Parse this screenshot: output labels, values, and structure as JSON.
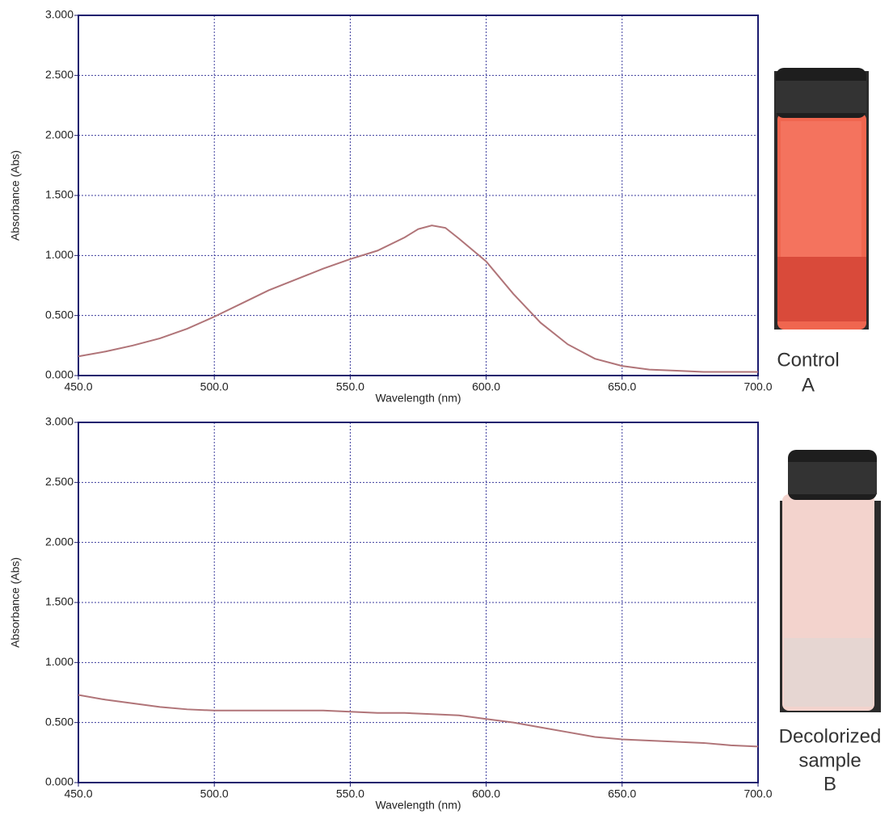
{
  "chart_data": [
    {
      "type": "line",
      "x_label": "Wavelength (nm)",
      "y_label": "Absorbance (Abs)",
      "caption": [
        "Control",
        "A"
      ],
      "x": [
        450,
        460,
        470,
        480,
        490,
        500,
        510,
        520,
        530,
        540,
        550,
        560,
        570,
        575,
        580,
        585,
        590,
        600,
        610,
        620,
        630,
        640,
        650,
        660,
        670,
        680,
        690,
        700
      ],
      "series": [
        {
          "color": "#b07478",
          "values": [
            0.16,
            0.2,
            0.25,
            0.31,
            0.39,
            0.49,
            0.6,
            0.71,
            0.8,
            0.89,
            0.97,
            1.04,
            1.15,
            1.22,
            1.25,
            1.23,
            1.14,
            0.95,
            0.68,
            0.44,
            0.26,
            0.14,
            0.08,
            0.05,
            0.04,
            0.03,
            0.03,
            0.03
          ]
        }
      ],
      "xlim": [
        450,
        700
      ],
      "ylim": [
        0,
        3
      ],
      "xticks": [
        {
          "value": 450,
          "label": "450.0"
        },
        {
          "value": 500,
          "label": "500.0"
        },
        {
          "value": 550,
          "label": "550.0"
        },
        {
          "value": 600,
          "label": "600.0"
        },
        {
          "value": 650,
          "label": "650.0"
        },
        {
          "value": 700,
          "label": "700.0"
        }
      ],
      "yticks": [
        {
          "value": 0,
          "label": "0.000"
        },
        {
          "value": 0.5,
          "label": "0.500"
        },
        {
          "value": 1,
          "label": "1.000"
        },
        {
          "value": 1.5,
          "label": "1.500"
        },
        {
          "value": 2,
          "label": "2.000"
        },
        {
          "value": 2.5,
          "label": "2.500"
        },
        {
          "value": 3,
          "label": "3.000"
        }
      ],
      "grid": true
    },
    {
      "type": "line",
      "x_label": "Wavelength (nm)",
      "y_label": "Absorbance (Abs)",
      "caption": [
        "Decolorized",
        "sample",
        "B"
      ],
      "x": [
        450,
        460,
        470,
        480,
        490,
        500,
        520,
        540,
        550,
        560,
        570,
        580,
        590,
        600,
        610,
        620,
        630,
        640,
        650,
        660,
        670,
        680,
        690,
        700
      ],
      "series": [
        {
          "color": "#b07478",
          "values": [
            0.73,
            0.69,
            0.66,
            0.63,
            0.61,
            0.6,
            0.6,
            0.6,
            0.59,
            0.58,
            0.58,
            0.57,
            0.56,
            0.53,
            0.5,
            0.46,
            0.42,
            0.38,
            0.36,
            0.35,
            0.34,
            0.33,
            0.31,
            0.3
          ]
        }
      ],
      "xlim": [
        450,
        700
      ],
      "ylim": [
        0,
        3
      ],
      "xticks": [
        {
          "value": 450,
          "label": "450.0"
        },
        {
          "value": 500,
          "label": "500.0"
        },
        {
          "value": 550,
          "label": "550.0"
        },
        {
          "value": 600,
          "label": "600.0"
        },
        {
          "value": 650,
          "label": "650.0"
        },
        {
          "value": 700,
          "label": "700.0"
        }
      ],
      "yticks": [
        {
          "value": 0,
          "label": "0.000"
        },
        {
          "value": 0.5,
          "label": "0.500"
        },
        {
          "value": 1,
          "label": "1.000"
        },
        {
          "value": 1.5,
          "label": "1.500"
        },
        {
          "value": 2,
          "label": "2.000"
        },
        {
          "value": 2.5,
          "label": "2.500"
        },
        {
          "value": 3,
          "label": "3.000"
        }
      ],
      "grid": true
    }
  ]
}
